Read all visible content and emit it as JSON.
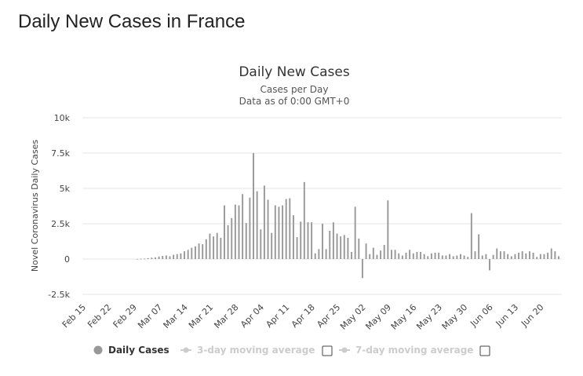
{
  "page": {
    "title": "Daily New Cases in France"
  },
  "chart_data": {
    "type": "bar",
    "title": "Daily New Cases",
    "subtitle": [
      "Cases per Day",
      "Data as of 0:00 GMT+0"
    ],
    "ylabel": "Novel Coronavirus Daily Cases",
    "ylim": [
      -2500,
      10000
    ],
    "yticks": [
      10000,
      7500,
      5000,
      2500,
      0,
      -2500
    ],
    "ytick_labels": [
      "10k",
      "7.5k",
      "5k",
      "2.5k",
      "0",
      "-2.5k"
    ],
    "xtick_labels": [
      "Feb 15",
      "Feb 22",
      "Feb 29",
      "Mar 07",
      "Mar 14",
      "Mar 21",
      "Mar 28",
      "Apr 04",
      "Apr 11",
      "Apr 18",
      "Apr 25",
      "May 02",
      "May 09",
      "May 16",
      "May 23",
      "May 30",
      "Jun 06",
      "Jun 13",
      "Jun 20"
    ],
    "xtick_step_days": 7,
    "bar_color": "#999999",
    "grid": true,
    "legend_position": "bottom",
    "series": [
      {
        "name": "Daily Cases",
        "active": true,
        "color": "#999999",
        "values": [
          0,
          0,
          0,
          0,
          0,
          0,
          0,
          0,
          0,
          0,
          0,
          0,
          0,
          0,
          10,
          20,
          30,
          60,
          100,
          120,
          180,
          220,
          250,
          200,
          300,
          350,
          400,
          550,
          650,
          800,
          900,
          1100,
          1050,
          1400,
          1800,
          1600,
          1850,
          1500,
          3800,
          2400,
          2900,
          3850,
          3800,
          4600,
          2550,
          4350,
          7500,
          4800,
          2100,
          5200,
          4200,
          1850,
          3800,
          3700,
          3800,
          4250,
          4300,
          3100,
          1550,
          2650,
          5450,
          2600,
          2600,
          400,
          700,
          2500,
          700,
          2000,
          2600,
          1800,
          1600,
          1700,
          1500,
          500,
          3700,
          1450,
          -1350,
          1100,
          350,
          800,
          300,
          600,
          1000,
          4150,
          650,
          650,
          400,
          250,
          450,
          650,
          400,
          500,
          500,
          350,
          200,
          400,
          450,
          450,
          250,
          250,
          350,
          200,
          250,
          350,
          250,
          150,
          3250,
          550,
          1750,
          250,
          350,
          -800,
          300,
          750,
          550,
          550,
          350,
          200,
          350,
          450,
          550,
          400,
          550,
          450,
          150,
          350,
          350,
          450,
          750,
          550,
          200
        ]
      },
      {
        "name": "3-day moving average",
        "active": false,
        "color": "#cccccc"
      },
      {
        "name": "7-day moving average",
        "active": false,
        "color": "#cccccc"
      }
    ]
  }
}
